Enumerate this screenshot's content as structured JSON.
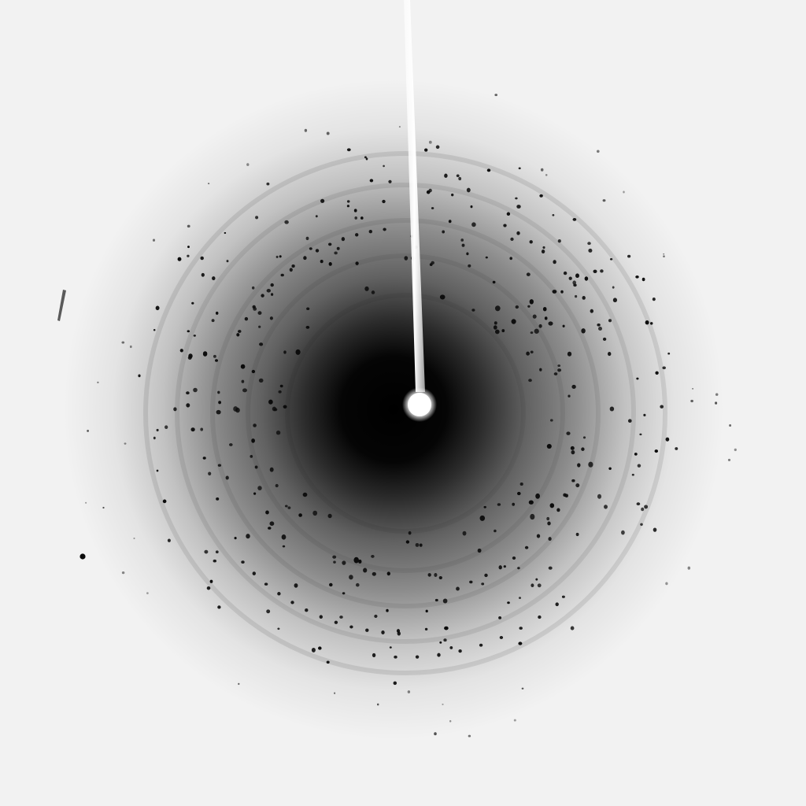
{
  "image": {
    "kind": "x-ray diffraction pattern",
    "colors": {
      "background": "#f2f2f2",
      "halo": "#000000",
      "spot": "#0a0a0a",
      "beamstop": "#ffffff"
    }
  }
}
